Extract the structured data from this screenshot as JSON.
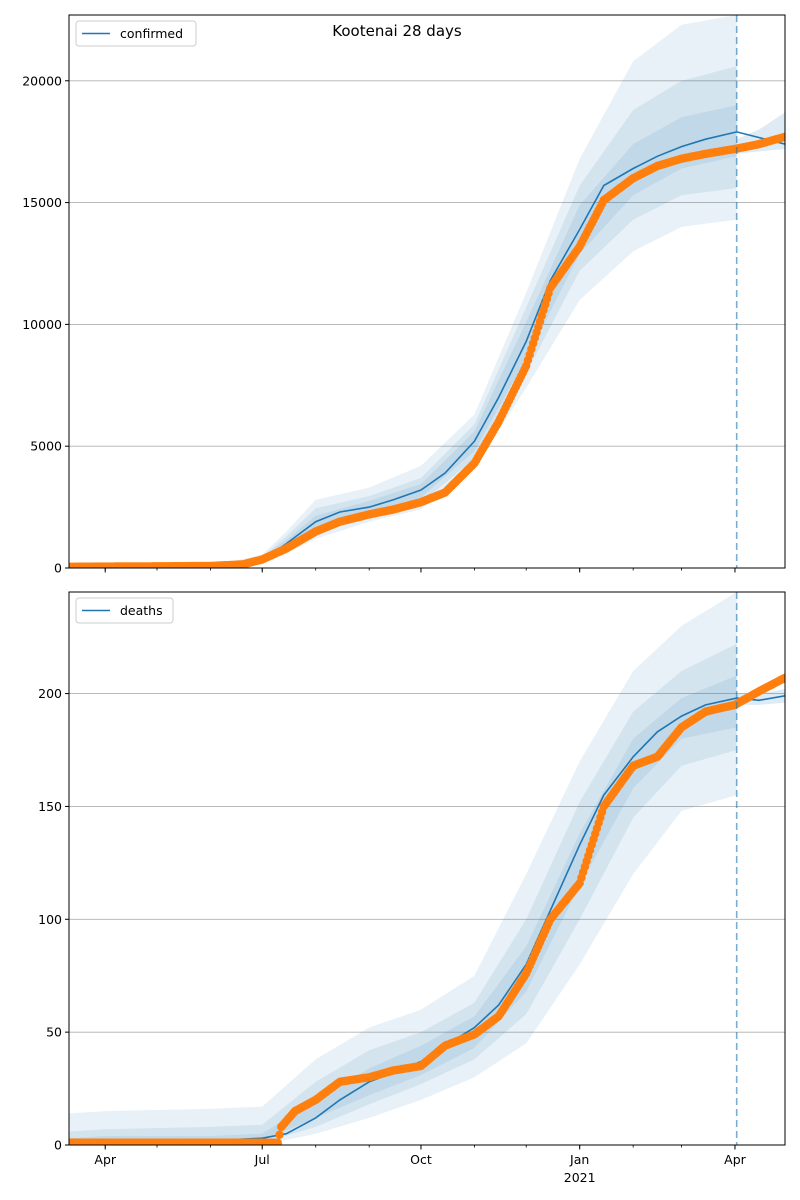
{
  "title": "Kootenai 28 days",
  "x_tick_labels": [
    "Apr",
    "Jul",
    "Oct",
    "Jan",
    "Apr"
  ],
  "x_year_label": "2021",
  "colors": {
    "model": "#1f77b4",
    "observed": "#ff7f0e",
    "band": "#1f77b4",
    "grid": "#b0b0b0",
    "cutoff": "#1f77b4"
  },
  "chart_data": [
    {
      "type": "line",
      "legend": [
        "confirmed"
      ],
      "legend_location": "upper-left",
      "grid": "y",
      "ylim": [
        0,
        22700
      ],
      "y_ticks": [
        0,
        5000,
        10000,
        15000,
        20000
      ],
      "x_range": [
        "2020-03-11",
        "2021-04-30"
      ],
      "x_ticks": [
        "2020-04-01",
        "2020-07-01",
        "2020-10-01",
        "2021-01-01",
        "2021-04-01"
      ],
      "cutoff_date": "2021-04-02",
      "series": [
        {
          "name": "confirmed",
          "x": [
            "2020-03-11",
            "2020-06-15",
            "2020-07-01",
            "2020-07-15",
            "2020-08-01",
            "2020-08-15",
            "2020-09-01",
            "2020-09-15",
            "2020-10-01",
            "2020-10-15",
            "2020-11-01",
            "2020-11-15",
            "2020-12-01",
            "2020-12-15",
            "2021-01-01",
            "2021-01-15",
            "2021-02-01",
            "2021-02-15",
            "2021-03-01",
            "2021-03-15",
            "2021-04-02",
            "2021-04-30"
          ],
          "values": [
            50,
            100,
            300,
            1000,
            1900,
            2300,
            2500,
            2800,
            3200,
            3900,
            5200,
            7000,
            9300,
            11800,
            13900,
            15700,
            16400,
            16900,
            17300,
            17600,
            17900,
            17400
          ]
        }
      ],
      "observed": {
        "x": [
          "2020-03-11",
          "2020-06-01",
          "2020-06-20",
          "2020-07-01",
          "2020-07-15",
          "2020-08-01",
          "2020-08-15",
          "2020-09-01",
          "2020-09-15",
          "2020-10-01",
          "2020-10-15",
          "2020-11-01",
          "2020-11-15",
          "2020-12-01",
          "2020-12-15",
          "2021-01-01",
          "2021-01-15",
          "2021-02-01",
          "2021-02-15",
          "2021-03-01",
          "2021-03-15",
          "2021-04-01",
          "2021-04-15",
          "2021-04-30"
        ],
        "values": [
          50,
          80,
          150,
          350,
          800,
          1500,
          1900,
          2200,
          2400,
          2700,
          3100,
          4300,
          6000,
          8300,
          11500,
          13200,
          15100,
          16000,
          16500,
          16800,
          17000,
          17200,
          17400,
          17700
        ]
      },
      "bands": [
        {
          "x": [
            "2020-03-11",
            "2020-06-15",
            "2020-07-01",
            "2020-07-15",
            "2020-08-01",
            "2020-09-01",
            "2020-10-01",
            "2020-11-01",
            "2020-12-01",
            "2021-01-01",
            "2021-02-01",
            "2021-03-01",
            "2021-04-02"
          ],
          "lower": [
            0,
            0,
            150,
            600,
            1200,
            1900,
            2400,
            4100,
            7400,
            11000,
            13000,
            14000,
            14300
          ],
          "upper": [
            150,
            300,
            550,
            1500,
            2800,
            3300,
            4200,
            6300,
            11300,
            16800,
            20800,
            22300,
            22700
          ]
        },
        {
          "x": [
            "2020-03-11",
            "2020-06-15",
            "2020-07-01",
            "2020-07-15",
            "2020-08-01",
            "2020-09-01",
            "2020-10-01",
            "2020-11-01",
            "2020-12-01",
            "2021-01-01",
            "2021-02-01",
            "2021-03-01",
            "2021-04-02"
          ],
          "lower": [
            0,
            30,
            200,
            750,
            1450,
            2050,
            2650,
            4500,
            8000,
            12200,
            14300,
            15300,
            15600
          ],
          "upper": [
            110,
            220,
            470,
            1300,
            2450,
            2950,
            3700,
            5900,
            10700,
            15700,
            18800,
            20000,
            20600
          ]
        },
        {
          "x": [
            "2020-03-11",
            "2020-06-15",
            "2020-07-01",
            "2020-07-15",
            "2020-08-01",
            "2020-09-01",
            "2020-10-01",
            "2020-11-01",
            "2020-12-01",
            "2021-01-01",
            "2021-02-01",
            "2021-03-01",
            "2021-04-02"
          ],
          "lower": [
            20,
            60,
            240,
            850,
            1650,
            2250,
            2900,
            4800,
            8600,
            12900,
            15300,
            16400,
            16900
          ],
          "upper": [
            80,
            160,
            400,
            1150,
            2150,
            2750,
            3450,
            5600,
            10100,
            14900,
            17400,
            18500,
            19000
          ]
        }
      ],
      "extension_band": {
        "x": [
          "2021-04-02",
          "2021-04-15",
          "2021-04-30"
        ],
        "lower": [
          17000,
          17100,
          17200
        ],
        "upper": [
          17600,
          18000,
          18700
        ]
      }
    },
    {
      "type": "line",
      "legend": [
        "deaths"
      ],
      "legend_location": "upper-left",
      "grid": "y",
      "ylim": [
        0,
        245
      ],
      "y_ticks": [
        0,
        50,
        100,
        150,
        200
      ],
      "x_range": [
        "2020-03-11",
        "2021-04-30"
      ],
      "x_ticks": [
        "2020-04-01",
        "2020-07-01",
        "2020-10-01",
        "2021-01-01",
        "2021-04-01"
      ],
      "cutoff_date": "2021-04-02",
      "series": [
        {
          "name": "deaths",
          "x": [
            "2020-03-11",
            "2020-04-01",
            "2020-06-01",
            "2020-07-01",
            "2020-07-15",
            "2020-08-01",
            "2020-08-15",
            "2020-09-01",
            "2020-09-15",
            "2020-10-01",
            "2020-10-15",
            "2020-11-01",
            "2020-11-15",
            "2020-12-01",
            "2020-12-15",
            "2021-01-01",
            "2021-01-15",
            "2021-02-01",
            "2021-02-15",
            "2021-03-01",
            "2021-03-15",
            "2021-04-02",
            "2021-04-15",
            "2021-04-30"
          ],
          "values": [
            0,
            2,
            2,
            3,
            5,
            12,
            20,
            28,
            32,
            37,
            44,
            52,
            62,
            80,
            104,
            133,
            155,
            172,
            183,
            190,
            195,
            198,
            197,
            199
          ]
        }
      ],
      "observed": {
        "x": [
          "2020-03-11",
          "2020-07-10",
          "2020-07-12",
          "2020-07-20",
          "2020-08-01",
          "2020-08-15",
          "2020-09-01",
          "2020-09-15",
          "2020-10-01",
          "2020-10-15",
          "2020-11-01",
          "2020-11-15",
          "2020-12-01",
          "2020-12-15",
          "2021-01-01",
          "2021-01-15",
          "2021-02-01",
          "2021-02-15",
          "2021-03-01",
          "2021-03-15",
          "2021-04-01",
          "2021-04-15",
          "2021-04-30"
        ],
        "values": [
          1,
          1,
          8,
          15,
          20,
          28,
          30,
          33,
          35,
          44,
          49,
          57,
          76,
          100,
          116,
          150,
          168,
          172,
          185,
          192,
          195,
          201,
          207
        ]
      },
      "bands": [
        {
          "x": [
            "2020-03-11",
            "2020-04-01",
            "2020-06-01",
            "2020-07-01",
            "2020-08-01",
            "2020-09-01",
            "2020-10-01",
            "2020-11-01",
            "2020-12-01",
            "2021-01-01",
            "2021-02-01",
            "2021-03-01",
            "2021-04-02"
          ],
          "lower": [
            0,
            0,
            0,
            0,
            5,
            12,
            20,
            30,
            45,
            80,
            120,
            148,
            155
          ],
          "upper": [
            14,
            15,
            16,
            17,
            38,
            52,
            60,
            75,
            120,
            170,
            210,
            230,
            245
          ]
        },
        {
          "x": [
            "2020-03-11",
            "2020-04-01",
            "2020-06-01",
            "2020-07-01",
            "2020-08-01",
            "2020-09-01",
            "2020-10-01",
            "2020-11-01",
            "2020-12-01",
            "2021-01-01",
            "2021-02-01",
            "2021-03-01",
            "2021-04-02"
          ],
          "lower": [
            0,
            0,
            0,
            1,
            8,
            18,
            27,
            38,
            58,
            100,
            145,
            168,
            175
          ],
          "upper": [
            6,
            7,
            8,
            9,
            28,
            42,
            50,
            63,
            100,
            152,
            192,
            210,
            222
          ]
        },
        {
          "x": [
            "2020-03-11",
            "2020-04-01",
            "2020-06-01",
            "2020-07-01",
            "2020-08-01",
            "2020-09-01",
            "2020-10-01",
            "2020-11-01",
            "2020-12-01",
            "2021-01-01",
            "2021-02-01",
            "2021-03-01",
            "2021-04-02"
          ],
          "lower": [
            0,
            1,
            1,
            2,
            12,
            22,
            31,
            43,
            68,
            115,
            158,
            180,
            185
          ],
          "upper": [
            3,
            4,
            4,
            5,
            20,
            34,
            44,
            57,
            88,
            138,
            180,
            198,
            208
          ]
        }
      ],
      "extension_band": {
        "x": [
          "2021-04-02",
          "2021-04-15",
          "2021-04-30"
        ],
        "lower": [
          195,
          195,
          196
        ],
        "upper": [
          200,
          200,
          202
        ]
      }
    }
  ]
}
